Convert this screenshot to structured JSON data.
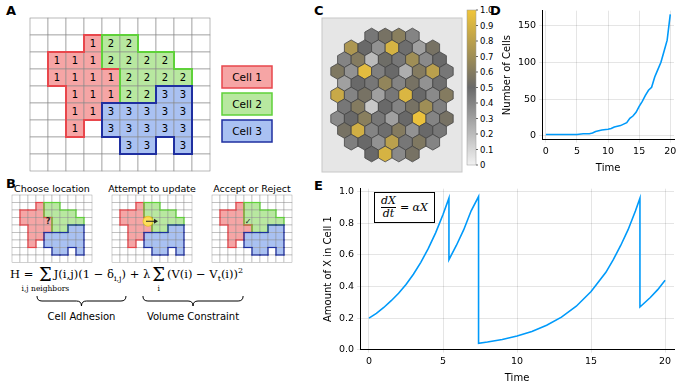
{
  "panel_a": {
    "label": "A",
    "grid": [
      [
        null,
        null,
        null,
        null,
        null,
        null,
        null,
        null,
        null,
        null
      ],
      [
        null,
        null,
        null,
        1,
        2,
        2,
        null,
        null,
        null,
        null
      ],
      [
        null,
        1,
        1,
        1,
        2,
        2,
        2,
        2,
        null,
        null
      ],
      [
        null,
        1,
        1,
        1,
        1,
        2,
        2,
        2,
        2,
        null
      ],
      [
        null,
        null,
        1,
        1,
        1,
        2,
        2,
        3,
        3,
        null
      ],
      [
        null,
        null,
        1,
        1,
        3,
        3,
        3,
        3,
        3,
        null
      ],
      [
        null,
        null,
        1,
        null,
        3,
        3,
        3,
        3,
        3,
        null
      ],
      [
        null,
        null,
        null,
        null,
        null,
        3,
        3,
        null,
        3,
        null
      ],
      [
        null,
        null,
        null,
        null,
        null,
        null,
        null,
        null,
        null,
        null
      ]
    ],
    "cells": [
      {
        "id": 1,
        "name": "Cell 1",
        "color": "#f6a5a5",
        "edge_color": "#e8474c"
      },
      {
        "id": 2,
        "name": "Cell 2",
        "color": "#b8e8a0",
        "edge_color": "#5fd13a"
      },
      {
        "id": 3,
        "name": "Cell 3",
        "color": "#a9c1f2",
        "edge_color": "#1f2fa0"
      }
    ]
  },
  "panel_b": {
    "label": "B",
    "steps": [
      "Choose location",
      "Attempt to update",
      "Accept or Reject"
    ],
    "site": {
      "row": 3,
      "col": 4
    },
    "new_cell": 2,
    "marks": [
      "?",
      "✓"
    ],
    "equation": {
      "lhs": "H =",
      "terms": [
        {
          "items": [
            {
              "text": "Σ",
              "under": "i,j neighbors"
            },
            {
              "text": "J(i,j)(1 − δ"
            },
            {
              "text": "i,j",
              "sub": true
            },
            {
              "text": ")"
            }
          ],
          "label": "Cell Adhesion"
        },
        {
          "operator": "+",
          "items": [
            {
              "text": "λ"
            },
            {
              "text": "Σ",
              "under": "i"
            },
            {
              "text": "(V(i) − V"
            },
            {
              "text": "t",
              "sub": true
            },
            {
              "text": "(i))"
            },
            {
              "text": "2",
              "sup": true
            }
          ],
          "label": "Volume Constraint"
        }
      ]
    }
  },
  "panel_c": {
    "label": "C",
    "cells": [
      [
        0.45,
        0.55,
        0.62,
        0.4
      ],
      [
        0.75,
        0.5,
        0.35,
        0.9,
        0.48,
        0.3,
        0.55
      ],
      [
        0.4,
        0.6,
        0.2,
        0.52,
        0.45,
        0.7,
        0.38,
        0.5
      ],
      [
        0.58,
        0.35,
        0.95,
        0.42,
        0.5,
        0.25,
        0.6,
        0.8,
        0.45
      ],
      [
        0.3,
        0.5,
        0.45,
        0.65,
        0.4,
        0.55,
        0.35,
        0.48
      ],
      [
        0.85,
        0.4,
        0.55,
        0.3,
        0.45,
        0.92,
        0.5,
        0.38,
        0.6
      ],
      [
        0.45,
        0.6,
        0.15,
        0.5,
        0.4,
        0.55,
        0.7,
        0.42
      ],
      [
        0.38,
        0.5,
        0.62,
        0.45,
        0.3,
        0.5,
        0.98,
        0.4,
        0.55
      ],
      [
        0.55,
        0.88,
        0.4,
        0.48,
        0.6,
        0.35,
        0.5,
        0.45
      ],
      [
        0.42,
        0.5,
        0.35,
        0.8,
        0.45,
        0.58,
        0.4
      ],
      [
        0.5,
        0.9,
        0.38,
        0.55
      ]
    ],
    "colorbar": {
      "range": [
        0,
        1
      ],
      "ticks": [
        0,
        0.1,
        0.2,
        0.3,
        0.4,
        0.5,
        0.6,
        0.7,
        0.8,
        0.9,
        {
          "value": 1,
          "label": "1.0"
        }
      ]
    }
  },
  "chart_data": [
    {
      "label": "D",
      "type": "line",
      "x_label": "Time",
      "y_label": "Number of Cells",
      "x": [
        0,
        1,
        2,
        3,
        4,
        5,
        6,
        7,
        7.5,
        8,
        8.5,
        9,
        10,
        10.5,
        11,
        12,
        12.5,
        13,
        13.5,
        14,
        14.5,
        15,
        15.5,
        16,
        16.5,
        17,
        17.5,
        18,
        18.5,
        19,
        19.5,
        20
      ],
      "series": [
        {
          "color": "#009afa",
          "line_style": "solid",
          "values": [
            2,
            2,
            2,
            2,
            2,
            2,
            3,
            3,
            4,
            6,
            7,
            8,
            9,
            10,
            12,
            14,
            16,
            18,
            24,
            27,
            32,
            40,
            47,
            55,
            62,
            66,
            80,
            90,
            100,
            115,
            130,
            165
          ]
        }
      ],
      "xlim": [
        -0.6,
        20.6
      ],
      "xticks": [
        0,
        5,
        10,
        15,
        20
      ],
      "ylim": [
        -5,
        170
      ],
      "yticks": [
        0,
        50,
        100,
        150
      ],
      "grid": true
    },
    {
      "label": "E",
      "type": "line",
      "x_label": "Time",
      "y_label": "Amount of X in Cell 1",
      "annotation": {
        "numerator": "dX",
        "denominator": "dt",
        "rhs": "= αX"
      },
      "x": [
        0,
        0.5,
        1,
        1.5,
        2,
        2.5,
        3,
        3.5,
        4,
        4.5,
        5,
        5.4,
        5.4,
        5.9,
        6.4,
        6.9,
        7.4,
        7.4,
        8,
        9,
        10,
        11,
        12,
        13,
        14,
        15,
        16,
        16.5,
        17,
        17.5,
        18,
        18.3,
        18.3,
        19,
        19.5,
        20
      ],
      "series": [
        {
          "color": "#009afa",
          "line_style": "solid",
          "values": [
            0.2,
            0.23,
            0.267,
            0.31,
            0.357,
            0.413,
            0.478,
            0.553,
            0.64,
            0.74,
            0.856,
            0.96,
            0.57,
            0.66,
            0.76,
            0.88,
            0.97,
            0.04,
            0.048,
            0.064,
            0.086,
            0.115,
            0.154,
            0.206,
            0.275,
            0.368,
            0.49,
            0.57,
            0.66,
            0.76,
            0.88,
            0.96,
            0.27,
            0.33,
            0.38,
            0.44
          ]
        }
      ],
      "xlim": [
        -0.6,
        20.6
      ],
      "xticks": [
        0,
        5,
        10,
        15,
        20
      ],
      "ylim": [
        0,
        1.02
      ],
      "yticks": [
        {
          "value": 0,
          "label": "0.0"
        },
        0.2,
        0.4,
        0.6,
        0.8,
        {
          "value": 1,
          "label": "1.0"
        }
      ],
      "grid": true
    }
  ]
}
